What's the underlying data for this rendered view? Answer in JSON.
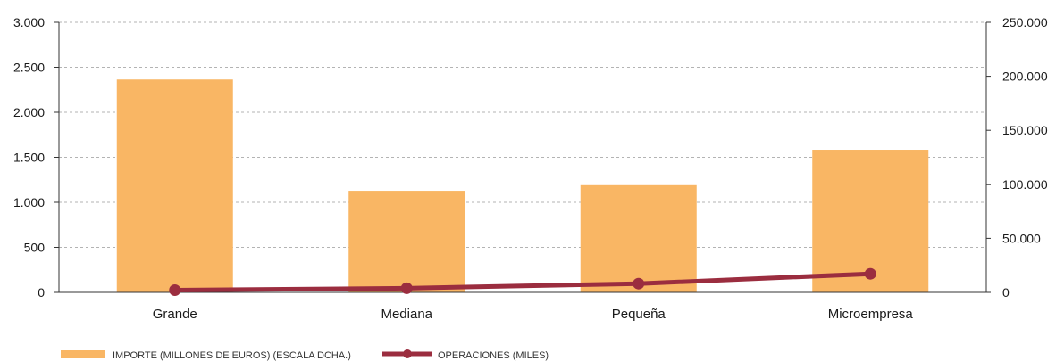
{
  "chart_data": {
    "type": "bar",
    "categories": [
      "Grande",
      "Mediana",
      "Pequeña",
      "Microempresa"
    ],
    "series": [
      {
        "name": "IMPORTE (MILLONES DE EUROS) (ESCALA DCHA.)",
        "kind": "bar",
        "axis": "right",
        "color": "#F9B664",
        "values": [
          197000,
          94000,
          100000,
          132000
        ]
      },
      {
        "name": "OPERACIONES (MILES)",
        "kind": "line",
        "axis": "left",
        "color": "#9B2D3F",
        "values": [
          25,
          46,
          97,
          206
        ]
      }
    ],
    "y_left": {
      "lim": [
        0,
        3000
      ],
      "ticks": [
        0,
        500,
        1000,
        1500,
        2000,
        2500,
        3000
      ],
      "tick_labels": [
        "0",
        "500",
        "1.000",
        "1.500",
        "2.000",
        "2.500",
        "3.000"
      ]
    },
    "y_right": {
      "lim": [
        0,
        250000
      ],
      "ticks": [
        0,
        50000,
        100000,
        150000,
        200000,
        250000
      ],
      "tick_labels": [
        "0",
        "50.000",
        "100.000",
        "150.000",
        "200.000",
        "250.000"
      ]
    },
    "grid": true,
    "legend_position": "bottom-left"
  }
}
